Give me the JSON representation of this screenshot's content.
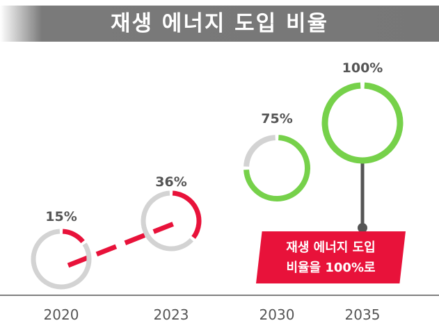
{
  "banner": {
    "title": "재생 에너지 도입 비율"
  },
  "chart_data": {
    "type": "donut",
    "title": "재생 에너지 도입 비율",
    "categories": [
      "2020",
      "2023",
      "2030",
      "2035"
    ],
    "values": [
      15,
      36,
      75,
      100
    ],
    "value_labels": [
      "15%",
      "36%",
      "75%",
      "100%"
    ],
    "ylim": [
      0,
      100
    ],
    "grid": false,
    "colors": {
      "base": "#d3d3d3",
      "red": "#e8123a",
      "green": "#76d14a",
      "text": "#555555",
      "axis": "#555555"
    },
    "annotation": {
      "lines": [
        "재생 에너지 도입",
        "비율을 100%로"
      ]
    }
  }
}
